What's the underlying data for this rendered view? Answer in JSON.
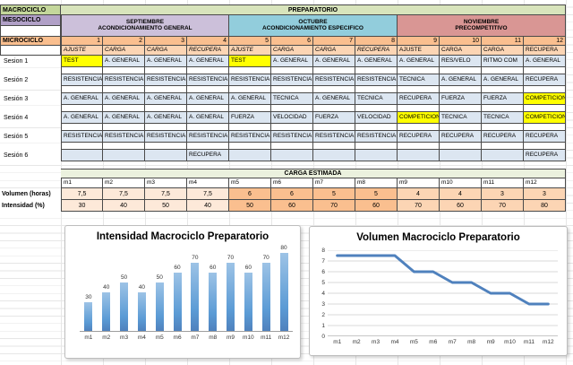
{
  "sheet": {
    "macrociclo": {
      "label": "MACROCICLO",
      "value": "PREPARATORIO"
    },
    "mesociclo": {
      "label": "MESOCICLO",
      "blocks": [
        {
          "month": "SEPTIEMBRE",
          "phase": "ACONDICIONAMIENTO GENERAL",
          "color": "#ccc0da"
        },
        {
          "month": "OCTUBRE",
          "phase": "ACONDICIONAMIENTO ESPECIFICO",
          "color": "#92cddc"
        },
        {
          "month": "NOVIEMBRE",
          "phase": "PRECOMPETITIVO",
          "color": "#d99694"
        }
      ]
    },
    "microciclo": {
      "label": "MICROCICLO",
      "numbers": [
        "1",
        "2",
        "3",
        "4",
        "5",
        "6",
        "7",
        "8",
        "9",
        "10",
        "11",
        "12"
      ]
    },
    "week_types": [
      {
        "text": "AJUSTE",
        "italic": true
      },
      {
        "text": "CARGA",
        "italic": true
      },
      {
        "text": "CARGA",
        "italic": true
      },
      {
        "text": "RECUPERA",
        "italic": true
      },
      {
        "text": "AJUSTE",
        "italic": true
      },
      {
        "text": "CARGA",
        "italic": true
      },
      {
        "text": "CARGA",
        "italic": true
      },
      {
        "text": "RECUPERA",
        "italic": true
      },
      {
        "text": "AJUSTE",
        "italic": false
      },
      {
        "text": "CARGA",
        "italic": false
      },
      {
        "text": "CARGA",
        "italic": false
      },
      {
        "text": "RECUPERA",
        "italic": false
      }
    ],
    "sessions": [
      {
        "label": "Sesion 1",
        "cells": [
          "TEST",
          "A. GENERAL",
          "A. GENERAL",
          "A. GENERAL",
          "TEST",
          "A. GENERAL",
          "A. GENERAL",
          "A. GENERAL",
          "A. GENERAL",
          "RES/VELO",
          "RITMO COM",
          "A. GENERAL"
        ],
        "highlight": [
          0,
          4
        ]
      },
      {
        "label": "Sesión 2",
        "cells": [
          "RESISTENCIA",
          "RESISTENCIA",
          "RESISTENCIA",
          "RESISTENCIA",
          "RESISTENCIA",
          "RESISTENCIA",
          "RESISTENCIA",
          "RESISTENCIA",
          "TECNICA",
          "A. GENERAL",
          "A. GENERAL",
          "RECUPERA"
        ],
        "highlight": []
      },
      {
        "label": "Sesión 3",
        "cells": [
          "A. GENERAL",
          "A. GENERAL",
          "A. GENERAL",
          "A. GENERAL",
          "A. GENERAL",
          "TECNICA",
          "A. GENERAL",
          "TECNICA",
          "RECUPERA",
          "FUERZA",
          "FUERZA",
          "COMPETICION"
        ],
        "highlight": [
          11
        ]
      },
      {
        "label": "Sesión 4",
        "cells": [
          "A. GENERAL",
          "A. GENERAL",
          "A. GENERAL",
          "A. GENERAL",
          "FUERZA",
          "VELOCIDAD",
          "FUERZA",
          "VELOCIDAD",
          "COMPETICION",
          "TECNICA",
          "TECNICA",
          "COMPETICION"
        ],
        "highlight": [
          8,
          11
        ]
      },
      {
        "label": "Sesión 5",
        "cells": [
          "RESISTENCIA",
          "RESISTENCIA",
          "RESISTENCIA",
          "RESISTENCIA",
          "RESISTENCIA",
          "RESISTENCIA",
          "RESISTENCIA",
          "RESISTENCIA",
          "RECUPERA",
          "RECUPERA",
          "RECUPERA",
          "RECUPERA"
        ],
        "highlight": []
      },
      {
        "label": "Sesión 6",
        "cells": [
          "",
          "",
          "",
          "RECUPERA",
          "",
          "",
          "",
          "",
          "",
          "",
          "",
          "RECUPERA"
        ],
        "highlight": []
      }
    ],
    "carga_estimada": {
      "title": "CARGA ESTIMADA",
      "months": [
        "m1",
        "m2",
        "m3",
        "m4",
        "m5",
        "m6",
        "m7",
        "m8",
        "m9",
        "m10",
        "m11",
        "m12"
      ],
      "volumen": {
        "label": "Volumen (horas)",
        "values": [
          "7,5",
          "7,5",
          "7,5",
          "7,5",
          "6",
          "6",
          "5",
          "5",
          "4",
          "4",
          "3",
          "3"
        ]
      },
      "intensidad": {
        "label": "Intensidad (%)",
        "values": [
          "30",
          "40",
          "50",
          "40",
          "50",
          "60",
          "70",
          "60",
          "70",
          "60",
          "70",
          "80"
        ]
      },
      "segment_colors": [
        "#fde9d9",
        "#fabf8f",
        "#fcd5b4"
      ]
    }
  },
  "colors": {
    "macro_label_bg": "#c4d79b",
    "macro_value_bg": "#d8e4bc",
    "meso_label_bg": "#b1a0c7",
    "micro_bg": "#fabf8f",
    "week_row_bg": "#fcd5b4",
    "session_cell_bg": "#dce6f1",
    "highlight_bg": "#ffff00",
    "carga_title_bg": "#ebf1de",
    "grid_border": "#4a4a4a"
  },
  "chart_data": [
    {
      "type": "bar",
      "title": "Intensidad Macrociclo Preparatorio",
      "categories": [
        "m1",
        "m2",
        "m3",
        "m4",
        "m5",
        "m6",
        "m7",
        "m8",
        "m9",
        "m10",
        "m11",
        "m12"
      ],
      "values": [
        30,
        40,
        50,
        40,
        50,
        60,
        70,
        60,
        70,
        60,
        70,
        80
      ],
      "xlabel": "",
      "ylabel": "",
      "ylim": [
        0,
        85
      ],
      "data_labels": true,
      "grid": false,
      "legend": "none",
      "bar_color": "#5b9bd5"
    },
    {
      "type": "line",
      "title": "Volumen Macrociclo Preparatorio",
      "x": [
        "m1",
        "m2",
        "m3",
        "m4",
        "m5",
        "m6",
        "m7",
        "m8",
        "m9",
        "m10",
        "m11",
        "m12"
      ],
      "values": [
        7.5,
        7.5,
        7.5,
        7.5,
        6,
        6,
        5,
        5,
        4,
        4,
        3,
        3
      ],
      "xlabel": "",
      "ylabel": "",
      "ylim": [
        0,
        8
      ],
      "yticks": [
        0,
        1,
        2,
        3,
        4,
        5,
        6,
        7,
        8
      ],
      "grid": true,
      "legend": "none",
      "line_color": "#4f81bd"
    }
  ]
}
